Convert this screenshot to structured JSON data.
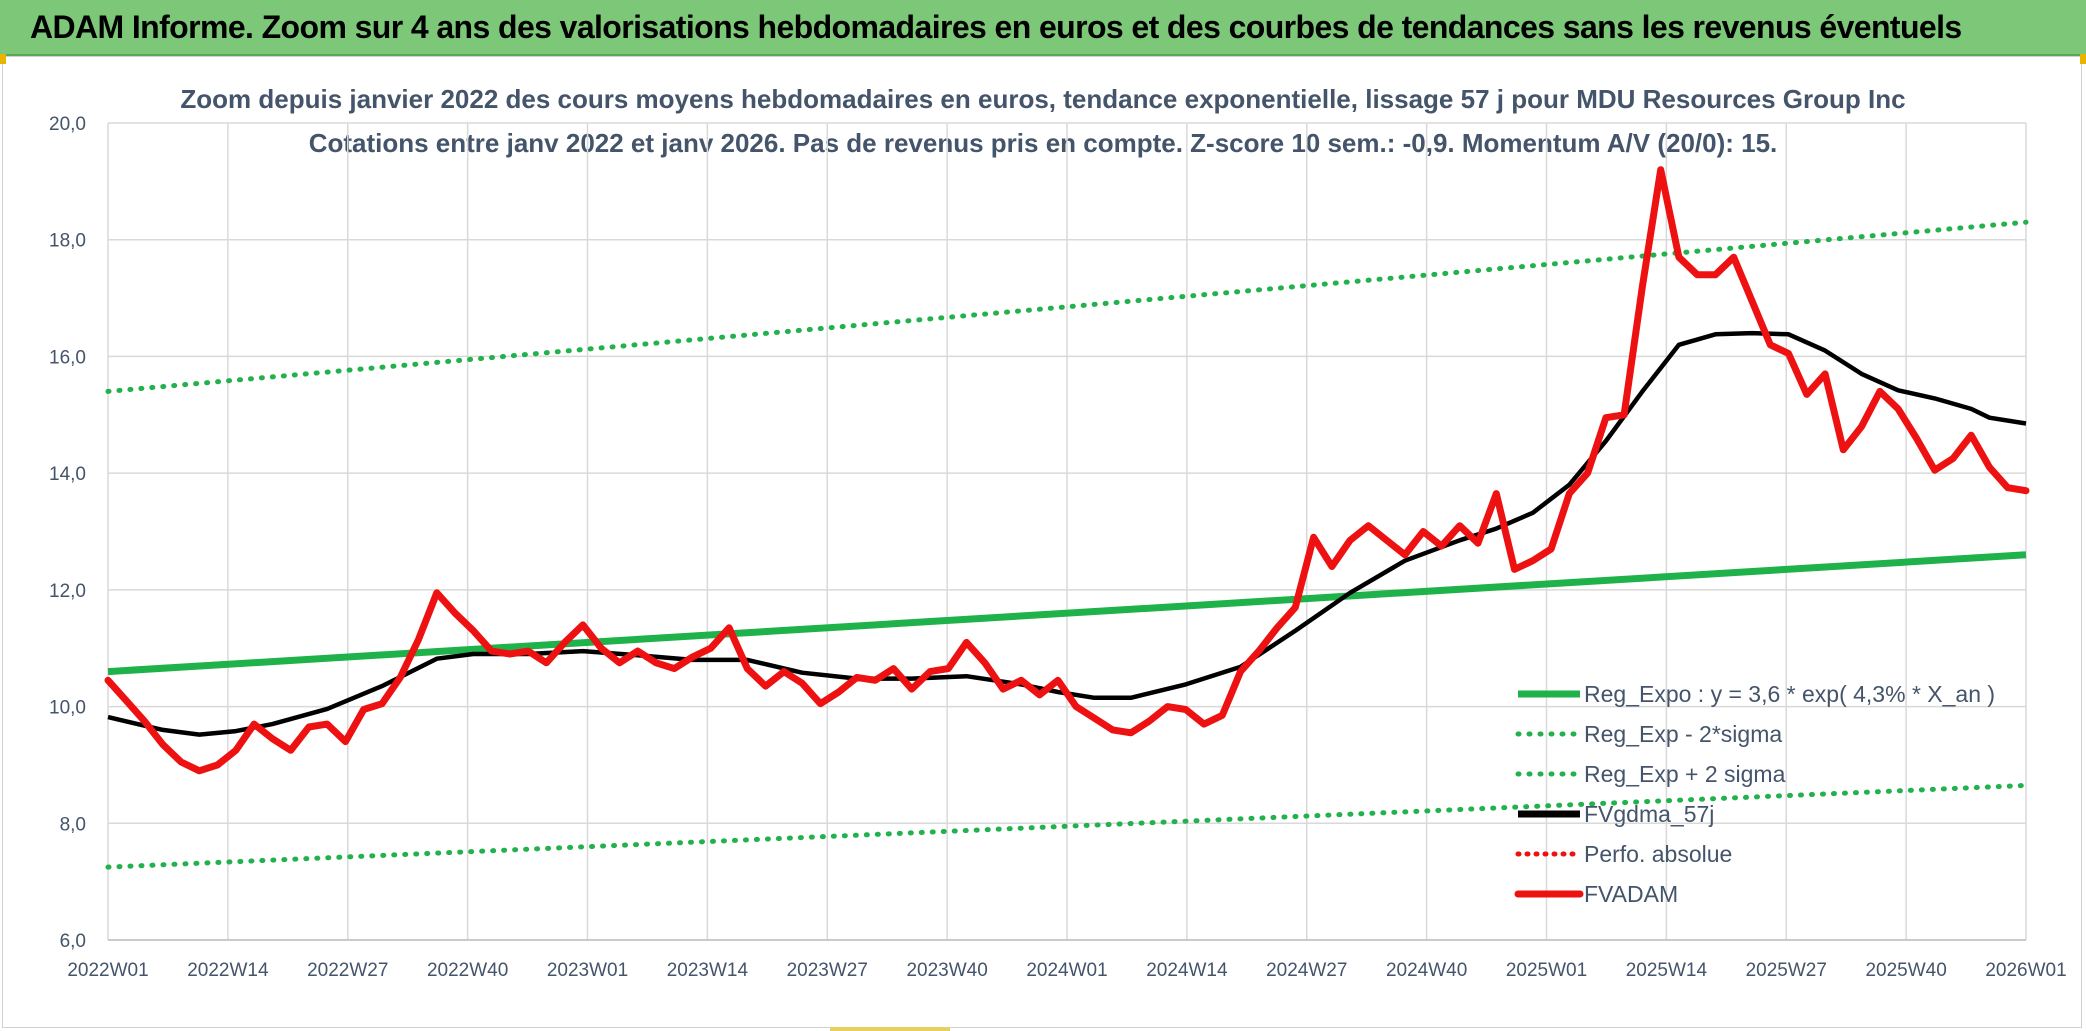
{
  "banner": {
    "title": "ADAM Informe. Zoom sur 4 ans des valorisations hebdomadaires en euros et des courbes de tendances sans les revenus éventuels"
  },
  "colors": {
    "banner_bg": "#7dc878",
    "trend_green": "#1fb24a",
    "dotted_green": "#22b14c",
    "red_series": "#ee1111",
    "black_series": "#000000",
    "grid": "#d9d9d9",
    "text": "#44546a"
  },
  "chart_data": {
    "type": "line",
    "title": "Zoom depuis janvier 2022 des cours moyens hebdomadaires en euros, tendance exponentielle, lissage 57 j pour MDU Resources Group Inc",
    "subtitle": "Cotations entre janv 2022 et janv 2026. Pas de revenus pris en compte. Z-score 10 sem.: -0,9. Momentum A/V (20/0): 15.",
    "xlabel": "",
    "ylabel": "",
    "ylim": [
      6,
      20
    ],
    "yticks": [
      "6,0",
      "8,0",
      "10,0",
      "12,0",
      "14,0",
      "16,0",
      "18,0",
      "20,0"
    ],
    "xticks": [
      "2022W01",
      "2022W14",
      "2022W27",
      "2022W40",
      "2023W01",
      "2023W14",
      "2023W27",
      "2023W40",
      "2024W01",
      "2024W14",
      "2024W27",
      "2024W40",
      "2025W01",
      "2025W14",
      "2025W27",
      "2025W40",
      "2026W01"
    ],
    "weeks_total": 210,
    "grid": true,
    "legend_position": "bottom-right",
    "series": [
      {
        "name": "Reg_Expo : y = 3,6 * exp( 4,3% *  X_an )",
        "style": "solid-green",
        "x": [
          0,
          210
        ],
        "values": [
          10.6,
          12.6
        ]
      },
      {
        "name": "Reg_Exp - 2*sigma",
        "style": "dotted-green",
        "x": [
          0,
          210
        ],
        "values": [
          7.25,
          8.65
        ]
      },
      {
        "name": "Reg_Exp + 2 sigma",
        "style": "dotted-green",
        "x": [
          0,
          210
        ],
        "values": [
          15.4,
          18.3
        ]
      },
      {
        "name": "FVgdma_57j",
        "style": "solid-black",
        "x": [
          0,
          6,
          10,
          14,
          18,
          24,
          30,
          36,
          40,
          46,
          52,
          58,
          64,
          70,
          76,
          82,
          88,
          94,
          100,
          104,
          108,
          112,
          118,
          124,
          130,
          136,
          142,
          148,
          152,
          156,
          160,
          164,
          168,
          172,
          176,
          180,
          184,
          188,
          192,
          196,
          200,
          204,
          206,
          210
        ],
        "values": [
          9.82,
          9.6,
          9.52,
          9.58,
          9.7,
          9.96,
          10.35,
          10.82,
          10.9,
          10.9,
          10.95,
          10.88,
          10.8,
          10.8,
          10.58,
          10.48,
          10.48,
          10.52,
          10.38,
          10.25,
          10.15,
          10.15,
          10.38,
          10.68,
          11.3,
          11.95,
          12.5,
          12.85,
          13.05,
          13.32,
          13.8,
          14.55,
          15.4,
          16.2,
          16.38,
          16.4,
          16.38,
          16.1,
          15.7,
          15.42,
          15.28,
          15.1,
          14.95,
          14.85
        ]
      },
      {
        "name": "Perfo. absolue",
        "style": "dotted-red",
        "x": [],
        "values": []
      },
      {
        "name": "FVADAM",
        "style": "solid-red",
        "x": [
          0,
          2,
          4,
          6,
          8,
          10,
          12,
          14,
          16,
          18,
          20,
          22,
          24,
          26,
          28,
          30,
          32,
          34,
          36,
          38,
          40,
          42,
          44,
          46,
          48,
          50,
          52,
          54,
          56,
          58,
          60,
          62,
          64,
          66,
          68,
          70,
          72,
          74,
          76,
          78,
          80,
          82,
          84,
          86,
          88,
          90,
          92,
          94,
          96,
          98,
          100,
          102,
          104,
          106,
          108,
          110,
          112,
          114,
          116,
          118,
          120,
          122,
          124,
          126,
          128,
          130,
          132,
          134,
          136,
          138,
          140,
          142,
          144,
          146,
          148,
          150,
          152,
          154,
          156,
          158,
          160,
          162,
          164,
          166,
          168,
          170,
          172,
          174,
          176,
          178,
          180,
          182,
          184,
          186,
          188,
          190,
          192,
          194,
          196,
          198,
          200,
          202,
          204,
          206,
          208,
          210
        ],
        "values": [
          10.45,
          10.1,
          9.75,
          9.35,
          9.05,
          8.9,
          9.0,
          9.25,
          9.7,
          9.45,
          9.25,
          9.65,
          9.7,
          9.4,
          9.95,
          10.05,
          10.5,
          11.15,
          11.95,
          11.6,
          11.3,
          10.95,
          10.9,
          10.95,
          10.75,
          11.1,
          11.4,
          11.0,
          10.75,
          10.95,
          10.75,
          10.65,
          10.85,
          11.0,
          11.35,
          10.65,
          10.35,
          10.6,
          10.4,
          10.05,
          10.25,
          10.5,
          10.45,
          10.65,
          10.3,
          10.6,
          10.65,
          11.1,
          10.75,
          10.3,
          10.45,
          10.2,
          10.45,
          10.0,
          9.8,
          9.6,
          9.55,
          9.75,
          10.0,
          9.95,
          9.7,
          9.85,
          10.6,
          10.95,
          11.35,
          11.7,
          12.9,
          12.4,
          12.85,
          13.1,
          12.85,
          12.6,
          13.0,
          12.75,
          13.1,
          12.8,
          13.65,
          12.35,
          12.5,
          12.7,
          13.65,
          14.0,
          14.95,
          15.0,
          17.2,
          19.2,
          17.7,
          17.4,
          17.4,
          17.7,
          16.95,
          16.2,
          16.05,
          15.35,
          15.7,
          14.4,
          14.8,
          15.4,
          15.1,
          14.6,
          14.05,
          14.25,
          14.65,
          14.1,
          13.75,
          13.7
        ]
      }
    ]
  }
}
